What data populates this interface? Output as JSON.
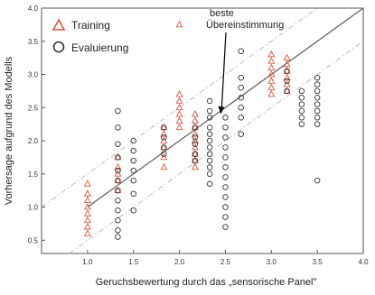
{
  "chart_data": {
    "type": "scatter",
    "xlabel": "Geruchsbewertung durch das „sensorische Panel\"",
    "ylabel": "Vorhersage aufgrund des Modells",
    "xlim": [
      0.5,
      4.0
    ],
    "ylim": [
      0.3,
      4.0
    ],
    "x_ticks": [
      "1.0",
      "1.5",
      "2.0",
      "2.5",
      "3.0",
      "3.5",
      "4.0"
    ],
    "y_ticks": [
      "0.5",
      "1.0",
      "1.5",
      "2.0",
      "2.5",
      "3.0",
      "3.5",
      "4.0"
    ],
    "legend_placement": "top-left",
    "grid": false,
    "annotation": {
      "lines": [
        "beste",
        "Übereinstimmung"
      ],
      "arrow_to": [
        2.45,
        2.4
      ]
    },
    "reference_line": {
      "x": [
        1.0,
        4.0
      ],
      "y": [
        1.0,
        4.0
      ],
      "color": "#666666"
    },
    "error_band": {
      "offset": 0.5,
      "color": "#bbbbbb",
      "style": "dash-dot"
    },
    "series": [
      {
        "name": "Training",
        "marker": "triangle",
        "color": "#d9573d",
        "points": [
          [
            1.0,
            1.35
          ],
          [
            1.0,
            1.2
          ],
          [
            1.0,
            1.1
          ],
          [
            1.0,
            1.0
          ],
          [
            1.0,
            0.9
          ],
          [
            1.0,
            0.8
          ],
          [
            1.0,
            0.7
          ],
          [
            1.0,
            0.6
          ],
          [
            1.33,
            1.75
          ],
          [
            1.33,
            1.6
          ],
          [
            1.33,
            1.5
          ],
          [
            1.33,
            1.4
          ],
          [
            1.33,
            1.25
          ],
          [
            1.83,
            2.2
          ],
          [
            1.83,
            2.1
          ],
          [
            1.83,
            2.0
          ],
          [
            1.83,
            1.9
          ],
          [
            1.83,
            1.75
          ],
          [
            1.83,
            1.6
          ],
          [
            2.0,
            3.75
          ],
          [
            2.0,
            2.7
          ],
          [
            2.0,
            2.6
          ],
          [
            2.0,
            2.5
          ],
          [
            2.0,
            2.4
          ],
          [
            2.0,
            2.3
          ],
          [
            2.0,
            2.2
          ],
          [
            2.17,
            2.4
          ],
          [
            2.17,
            2.3
          ],
          [
            2.17,
            2.2
          ],
          [
            2.17,
            2.1
          ],
          [
            2.17,
            2.0
          ],
          [
            2.17,
            1.9
          ],
          [
            2.17,
            1.8
          ],
          [
            2.17,
            1.7
          ],
          [
            2.17,
            1.6
          ],
          [
            3.0,
            3.3
          ],
          [
            3.0,
            3.2
          ],
          [
            3.0,
            3.1
          ],
          [
            3.0,
            3.0
          ],
          [
            3.0,
            2.9
          ],
          [
            3.0,
            2.8
          ],
          [
            3.0,
            2.7
          ],
          [
            3.17,
            3.25
          ],
          [
            3.17,
            3.15
          ],
          [
            3.17,
            3.05
          ],
          [
            3.17,
            2.95
          ],
          [
            3.17,
            2.85
          ],
          [
            3.17,
            2.75
          ]
        ]
      },
      {
        "name": "Evaluierung",
        "marker": "circle",
        "color": "#333333",
        "points": [
          [
            1.33,
            2.45
          ],
          [
            1.33,
            2.2
          ],
          [
            1.33,
            1.95
          ],
          [
            1.33,
            1.75
          ],
          [
            1.33,
            1.55
          ],
          [
            1.33,
            1.4
          ],
          [
            1.33,
            1.25
          ],
          [
            1.33,
            1.1
          ],
          [
            1.33,
            0.95
          ],
          [
            1.33,
            0.8
          ],
          [
            1.33,
            0.65
          ],
          [
            1.33,
            0.55
          ],
          [
            1.5,
            2.0
          ],
          [
            1.5,
            1.85
          ],
          [
            1.5,
            1.7
          ],
          [
            1.5,
            1.55
          ],
          [
            1.5,
            1.4
          ],
          [
            1.5,
            1.2
          ],
          [
            1.5,
            0.95
          ],
          [
            1.83,
            2.2
          ],
          [
            1.83,
            2.05
          ],
          [
            1.83,
            1.9
          ],
          [
            1.83,
            1.8
          ],
          [
            2.17,
            2.2
          ],
          [
            2.17,
            2.05
          ],
          [
            2.17,
            1.95
          ],
          [
            2.17,
            1.8
          ],
          [
            2.17,
            1.7
          ],
          [
            2.33,
            2.6
          ],
          [
            2.33,
            2.45
          ],
          [
            2.33,
            2.35
          ],
          [
            2.33,
            2.2
          ],
          [
            2.33,
            2.1
          ],
          [
            2.33,
            2.0
          ],
          [
            2.33,
            1.9
          ],
          [
            2.33,
            1.8
          ],
          [
            2.33,
            1.7
          ],
          [
            2.33,
            1.6
          ],
          [
            2.33,
            1.5
          ],
          [
            2.33,
            1.35
          ],
          [
            2.5,
            2.35
          ],
          [
            2.5,
            2.2
          ],
          [
            2.5,
            2.05
          ],
          [
            2.5,
            1.9
          ],
          [
            2.5,
            1.75
          ],
          [
            2.5,
            1.6
          ],
          [
            2.5,
            1.45
          ],
          [
            2.5,
            1.3
          ],
          [
            2.5,
            1.15
          ],
          [
            2.5,
            1.0
          ],
          [
            2.5,
            0.85
          ],
          [
            2.5,
            0.7
          ],
          [
            2.67,
            3.35
          ],
          [
            2.67,
            2.95
          ],
          [
            2.67,
            2.8
          ],
          [
            2.67,
            2.65
          ],
          [
            2.67,
            2.5
          ],
          [
            2.67,
            2.35
          ],
          [
            2.67,
            2.1
          ],
          [
            3.17,
            3.05
          ],
          [
            3.17,
            2.9
          ],
          [
            3.17,
            2.75
          ],
          [
            3.33,
            2.75
          ],
          [
            3.33,
            2.65
          ],
          [
            3.33,
            2.55
          ],
          [
            3.33,
            2.45
          ],
          [
            3.33,
            2.35
          ],
          [
            3.33,
            2.25
          ],
          [
            3.5,
            2.95
          ],
          [
            3.5,
            2.85
          ],
          [
            3.5,
            2.75
          ],
          [
            3.5,
            2.65
          ],
          [
            3.5,
            2.55
          ],
          [
            3.5,
            2.45
          ],
          [
            3.5,
            2.35
          ],
          [
            3.5,
            2.25
          ],
          [
            3.5,
            1.4
          ]
        ]
      }
    ]
  }
}
